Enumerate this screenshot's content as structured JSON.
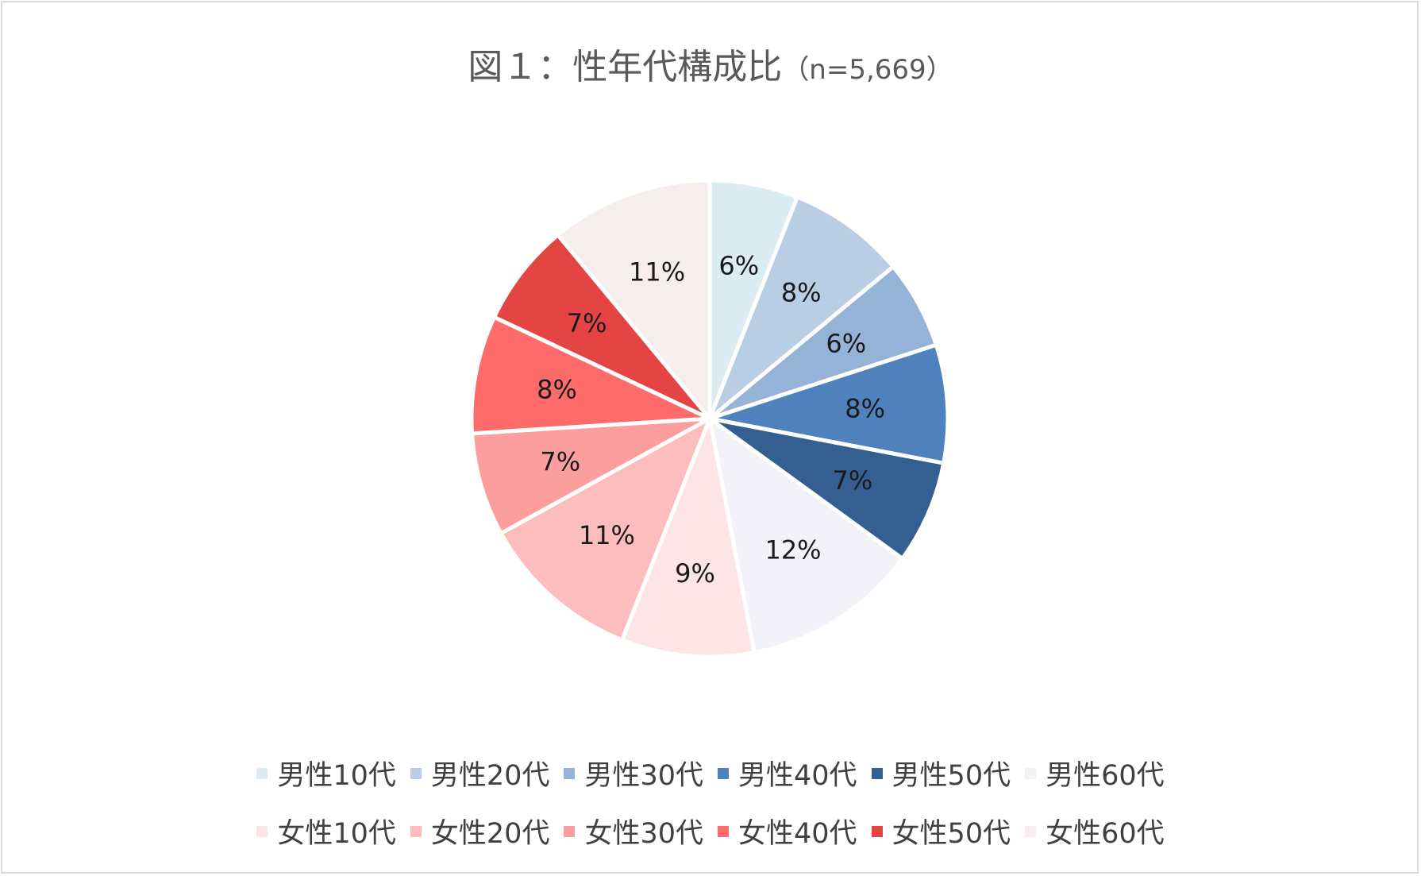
{
  "title": {
    "main": "図１：性年代構成比",
    "sub": "（n=5,669）"
  },
  "chart_data": {
    "type": "pie",
    "title": "図１：性年代構成比（n=5,669）",
    "categories": [
      "男性10代",
      "男性20代",
      "男性30代",
      "男性40代",
      "男性50代",
      "男性60代",
      "女性10代",
      "女性20代",
      "女性30代",
      "女性40代",
      "女性50代",
      "女性60代"
    ],
    "values": [
      6,
      8,
      6,
      8,
      7,
      12,
      9,
      11,
      7,
      8,
      7,
      11
    ],
    "labels": [
      "6%",
      "8%",
      "6%",
      "8%",
      "7%",
      "12%",
      "9%",
      "11%",
      "7%",
      "8%",
      "7%",
      "11%"
    ],
    "colors": [
      "#dbecf3",
      "#b9cde5",
      "#95b3d7",
      "#4f81bd",
      "#355f91",
      "#f2f2f8",
      "#fde4e6",
      "#fdbcbd",
      "#fc9e9e",
      "#ff6b6b",
      "#e54444",
      "#f6eded"
    ],
    "legend_position": "bottom"
  }
}
